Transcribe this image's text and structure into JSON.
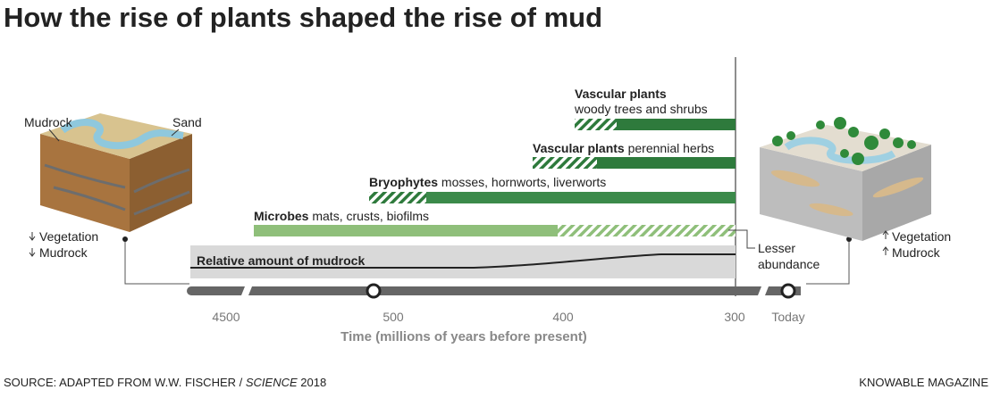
{
  "title": "How the rise of plants shaped the rise of mud",
  "groups": [
    {
      "name": "Vascular plants",
      "desc": "woody trees and shrubs"
    },
    {
      "name": "Vascular plants",
      "desc": "perennial herbs"
    },
    {
      "name": "Bryophytes",
      "desc": "mosses, hornworts, liverworts"
    },
    {
      "name": "Microbes",
      "desc": "mats, crusts, biofilms"
    }
  ],
  "mudrock_label": "Relative amount of mudrock",
  "lesser": [
    "Lesser",
    "abundance"
  ],
  "left_box": {
    "mudrock": "Mudrock",
    "sand": "Sand",
    "vegetation": "Vegetation",
    "mudrock_amount": "Mudrock"
  },
  "right_box": {
    "vegetation": "Vegetation",
    "mudrock_amount": "Mudrock"
  },
  "axis": {
    "ticks": [
      "4500",
      "500",
      "400",
      "300",
      "Today"
    ],
    "label": "Time (millions of years before present)"
  },
  "source": {
    "text": "SOURCE: ADAPTED FROM W.W. FISCHER /",
    "journal": "SCIENCE",
    "year": "2018"
  },
  "credit": "KNOWABLE MAGAZINE"
}
